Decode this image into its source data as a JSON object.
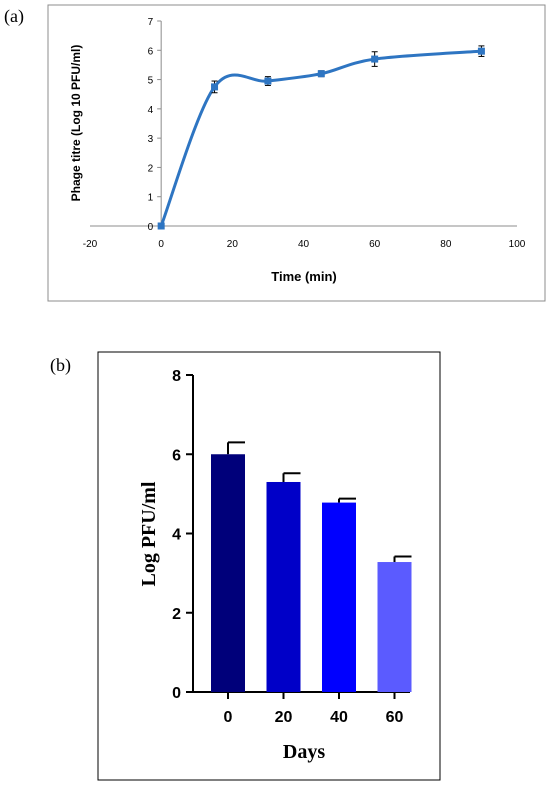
{
  "panels": {
    "a_label": "(a)",
    "b_label": "(b)"
  },
  "chart_data": [
    {
      "type": "line",
      "title": "",
      "xlabel": "Time (min)",
      "ylabel": "Phage titre (Log 10 PFU/ml)",
      "xlim": [
        -20,
        100
      ],
      "ylim": [
        0,
        7
      ],
      "xticks": [
        -20,
        0,
        20,
        40,
        60,
        80,
        100
      ],
      "yticks": [
        0,
        1,
        2,
        3,
        4,
        5,
        6,
        7
      ],
      "grid": false,
      "legend": "none",
      "series": [
        {
          "x": [
            0,
            15,
            30,
            45,
            60,
            90
          ],
          "y": [
            0,
            4.75,
            4.95,
            5.2,
            5.7,
            5.97
          ],
          "error": [
            0,
            0.2,
            0.15,
            0.1,
            0.25,
            0.18
          ],
          "color": "#2e75c2"
        }
      ]
    },
    {
      "type": "bar",
      "title": "",
      "xlabel": "Days",
      "ylabel": "Log PFU/ml",
      "categories": [
        "0",
        "20",
        "40",
        "60"
      ],
      "values": [
        6.0,
        5.3,
        4.78,
        3.28
      ],
      "error": [
        0.3,
        0.22,
        0.1,
        0.14
      ],
      "colors": [
        "#00007a",
        "#0000c8",
        "#0000ff",
        "#5b5bff"
      ],
      "ylim": [
        0,
        8
      ],
      "yticks": [
        0,
        2,
        4,
        6,
        8
      ],
      "grid": false,
      "legend": "none"
    }
  ]
}
